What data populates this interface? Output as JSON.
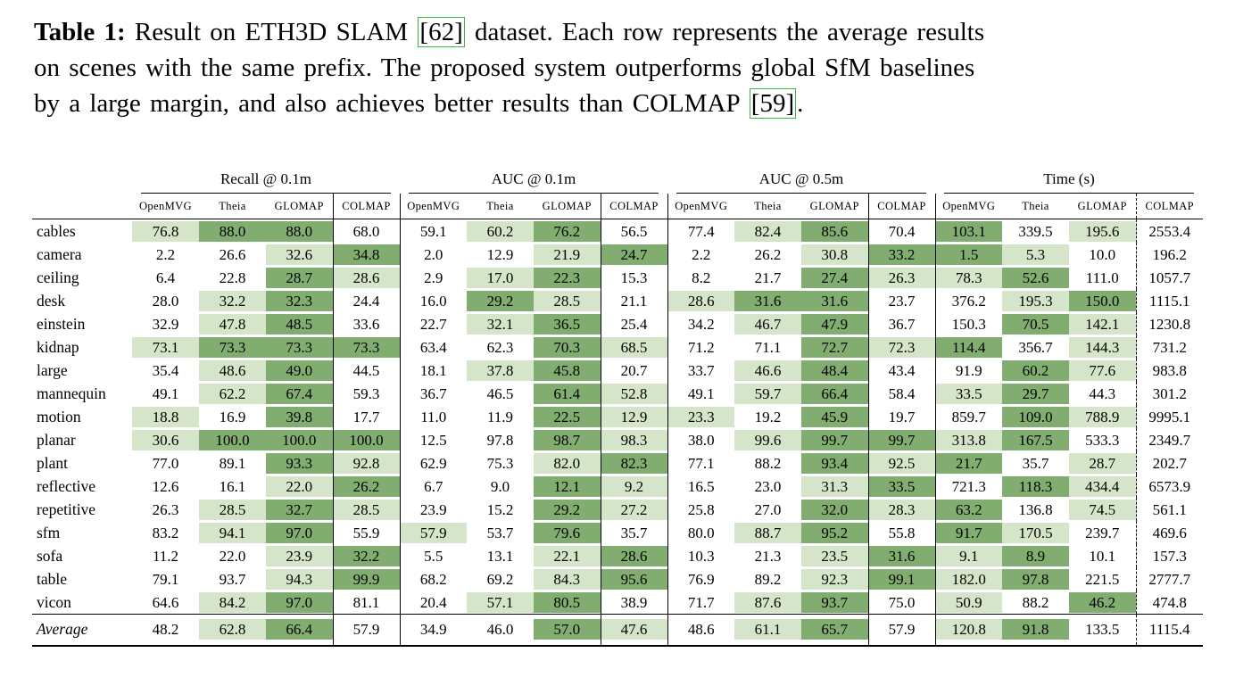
{
  "caption": {
    "label": "Table 1:",
    "line1_text": "Result on ETH3D SLAM",
    "cite1": "[62]",
    "line1_end": "dataset. Each row represents the average results",
    "line2": "on scenes with the same prefix. The proposed system outperforms global SfM baselines",
    "line3_start": "by a large margin, and also achieves better results than COLMAP",
    "cite2": "[59]",
    "line3_end": ".",
    "link_box_color": "#3eb149"
  },
  "chart_data": {
    "type": "table",
    "title": "Result on ETH3D SLAM dataset",
    "groups": [
      {
        "label": "Recall @ 0.1m",
        "better": "higher"
      },
      {
        "label": "AUC @ 0.1m",
        "better": "higher"
      },
      {
        "label": "AUC @ 0.5m",
        "better": "higher"
      },
      {
        "label": "Time (s)",
        "better": "lower"
      }
    ],
    "methods": [
      "OpenMVG",
      "Theia",
      "GLOMAP",
      "COLMAP"
    ],
    "highlight": {
      "best": "#82ad70",
      "second": "#d5e5c9"
    },
    "rows": [
      {
        "scene": "cables",
        "values": [
          [
            76.8,
            88.0,
            88.0,
            68.0
          ],
          [
            59.1,
            60.2,
            76.2,
            56.5
          ],
          [
            77.4,
            82.4,
            85.6,
            70.4
          ],
          [
            103.1,
            339.5,
            195.6,
            2553.4
          ]
        ]
      },
      {
        "scene": "camera",
        "values": [
          [
            2.2,
            26.6,
            32.6,
            34.8
          ],
          [
            2.0,
            12.9,
            21.9,
            24.7
          ],
          [
            2.2,
            26.2,
            30.8,
            33.2
          ],
          [
            1.5,
            5.3,
            10.0,
            196.2
          ]
        ]
      },
      {
        "scene": "ceiling",
        "values": [
          [
            6.4,
            22.8,
            28.7,
            28.6
          ],
          [
            2.9,
            17.0,
            22.3,
            15.3
          ],
          [
            8.2,
            21.7,
            27.4,
            26.3
          ],
          [
            78.3,
            52.6,
            111.0,
            1057.7
          ]
        ]
      },
      {
        "scene": "desk",
        "values": [
          [
            28.0,
            32.2,
            32.3,
            24.4
          ],
          [
            16.0,
            29.2,
            28.5,
            21.1
          ],
          [
            28.6,
            31.6,
            31.6,
            23.7
          ],
          [
            376.2,
            195.3,
            150.0,
            1115.1
          ]
        ]
      },
      {
        "scene": "einstein",
        "values": [
          [
            32.9,
            47.8,
            48.5,
            33.6
          ],
          [
            22.7,
            32.1,
            36.5,
            25.4
          ],
          [
            34.2,
            46.7,
            47.9,
            36.7
          ],
          [
            150.3,
            70.5,
            142.1,
            1230.8
          ]
        ]
      },
      {
        "scene": "kidnap",
        "values": [
          [
            73.1,
            73.3,
            73.3,
            73.3
          ],
          [
            63.4,
            62.3,
            70.3,
            68.5
          ],
          [
            71.2,
            71.1,
            72.7,
            72.3
          ],
          [
            114.4,
            356.7,
            144.3,
            731.2
          ]
        ]
      },
      {
        "scene": "large",
        "values": [
          [
            35.4,
            48.6,
            49.0,
            44.5
          ],
          [
            18.1,
            37.8,
            45.8,
            20.7
          ],
          [
            33.7,
            46.6,
            48.4,
            43.4
          ],
          [
            91.9,
            60.2,
            77.6,
            983.8
          ]
        ]
      },
      {
        "scene": "mannequin",
        "values": [
          [
            49.1,
            62.2,
            67.4,
            59.3
          ],
          [
            36.7,
            46.5,
            61.4,
            52.8
          ],
          [
            49.1,
            59.7,
            66.4,
            58.4
          ],
          [
            33.5,
            29.7,
            44.3,
            301.2
          ]
        ]
      },
      {
        "scene": "motion",
        "values": [
          [
            18.8,
            16.9,
            39.8,
            17.7
          ],
          [
            11.0,
            11.9,
            22.5,
            12.9
          ],
          [
            23.3,
            19.2,
            45.9,
            19.7
          ],
          [
            859.7,
            109.0,
            788.9,
            9995.1
          ]
        ]
      },
      {
        "scene": "planar",
        "values": [
          [
            30.6,
            100.0,
            100.0,
            100.0
          ],
          [
            12.5,
            97.8,
            98.7,
            98.3
          ],
          [
            38.0,
            99.6,
            99.7,
            99.7
          ],
          [
            313.8,
            167.5,
            533.3,
            2349.7
          ]
        ]
      },
      {
        "scene": "plant",
        "values": [
          [
            77.0,
            89.1,
            93.3,
            92.8
          ],
          [
            62.9,
            75.3,
            82.0,
            82.3
          ],
          [
            77.1,
            88.2,
            93.4,
            92.5
          ],
          [
            21.7,
            35.7,
            28.7,
            202.7
          ]
        ]
      },
      {
        "scene": "reflective",
        "values": [
          [
            12.6,
            16.1,
            22.0,
            26.2
          ],
          [
            6.7,
            9.0,
            12.1,
            9.2
          ],
          [
            16.5,
            23.0,
            31.3,
            33.5
          ],
          [
            721.3,
            118.3,
            434.4,
            6573.9
          ]
        ]
      },
      {
        "scene": "repetitive",
        "values": [
          [
            26.3,
            28.5,
            32.7,
            28.5
          ],
          [
            23.9,
            15.2,
            29.2,
            27.2
          ],
          [
            25.8,
            27.0,
            32.0,
            28.3
          ],
          [
            63.2,
            136.8,
            74.5,
            561.1
          ]
        ]
      },
      {
        "scene": "sfm",
        "values": [
          [
            83.2,
            94.1,
            97.0,
            55.9
          ],
          [
            57.9,
            53.7,
            79.6,
            35.7
          ],
          [
            80.0,
            88.7,
            95.2,
            55.8
          ],
          [
            91.7,
            170.5,
            239.7,
            469.6
          ]
        ]
      },
      {
        "scene": "sofa",
        "values": [
          [
            11.2,
            22.0,
            23.9,
            32.2
          ],
          [
            5.5,
            13.1,
            22.1,
            28.6
          ],
          [
            10.3,
            21.3,
            23.5,
            31.6
          ],
          [
            9.1,
            8.9,
            10.1,
            157.3
          ]
        ]
      },
      {
        "scene": "table",
        "values": [
          [
            79.1,
            93.7,
            94.3,
            99.9
          ],
          [
            68.2,
            69.2,
            84.3,
            95.6
          ],
          [
            76.9,
            89.2,
            92.3,
            99.1
          ],
          [
            182.0,
            97.8,
            221.5,
            2777.7
          ]
        ]
      },
      {
        "scene": "vicon",
        "values": [
          [
            64.6,
            84.2,
            97.0,
            81.1
          ],
          [
            20.4,
            57.1,
            80.5,
            38.9
          ],
          [
            71.7,
            87.6,
            93.7,
            75.0
          ],
          [
            50.9,
            88.2,
            46.2,
            474.8
          ]
        ]
      }
    ],
    "average": {
      "scene": "Average",
      "values": [
        [
          48.2,
          62.8,
          66.4,
          57.9
        ],
        [
          34.9,
          46.0,
          57.0,
          47.6
        ],
        [
          48.6,
          61.1,
          65.7,
          57.9
        ],
        [
          120.8,
          91.8,
          133.5,
          1115.4
        ]
      ]
    }
  }
}
